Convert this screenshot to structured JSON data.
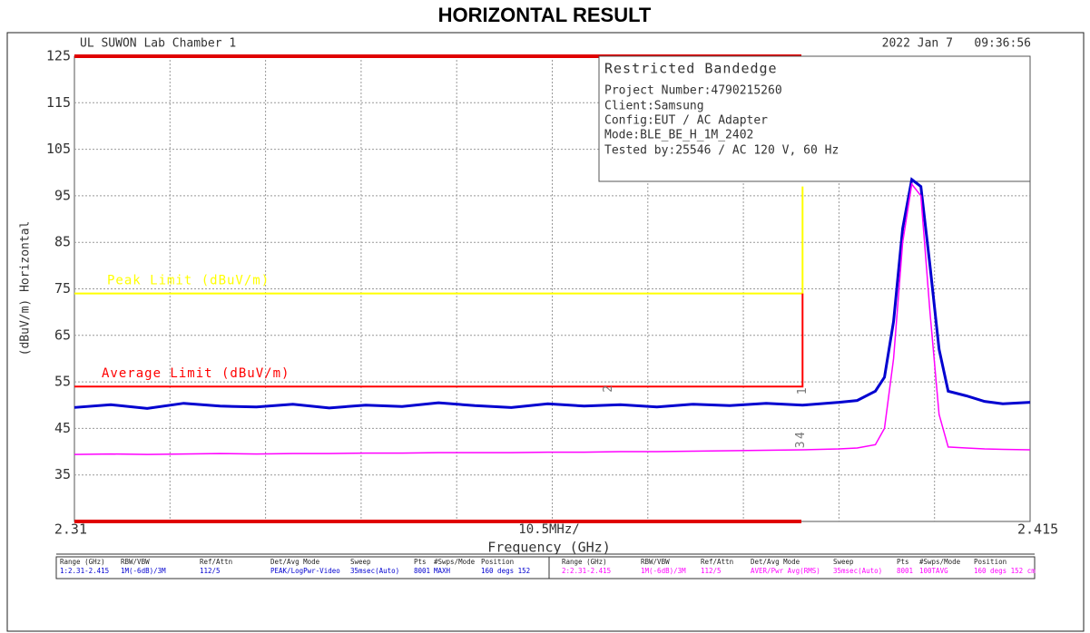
{
  "chart_data": {
    "type": "line",
    "title": "HORIZONTAL RESULT",
    "header_left": "UL SUWON Lab Chamber 1",
    "header_right": "2022 Jan 7   09:36:56",
    "ylabel": "(dBuV/m) Horizontal",
    "xlabel": "Frequency (GHz)",
    "x_scale_label": "10.5MHz/",
    "xlim": [
      2.31,
      2.415
    ],
    "xticks": [
      2.31,
      2.415
    ],
    "ylim": [
      25,
      125
    ],
    "yticks": [
      125,
      115,
      105,
      95,
      85,
      75,
      65,
      55,
      45,
      35
    ],
    "grid": true,
    "info_box": [
      "Restricted Bandedge",
      "Project Number:4790215260",
      "Client:Samsung",
      "Config:EUT / AC Adapter",
      "Mode:BLE_BE_H_1M_2402",
      "Tested by:25546 / AC 120 V, 60 Hz"
    ],
    "x": [
      2.31,
      2.314,
      2.318,
      2.322,
      2.326,
      2.33,
      2.334,
      2.338,
      2.342,
      2.346,
      2.35,
      2.354,
      2.358,
      2.362,
      2.366,
      2.37,
      2.374,
      2.378,
      2.382,
      2.386,
      2.39,
      2.394,
      2.396,
      2.398,
      2.399,
      2.4,
      2.401,
      2.402,
      2.403,
      2.404,
      2.405,
      2.406,
      2.408,
      2.41,
      2.412,
      2.415
    ],
    "series": [
      {
        "name": "Peak",
        "color": "#0000d0",
        "values": [
          49.5,
          50.1,
          49.3,
          50.4,
          49.8,
          49.6,
          50.2,
          49.4,
          50.0,
          49.7,
          50.5,
          49.9,
          49.5,
          50.3,
          49.8,
          50.1,
          49.6,
          50.2,
          49.9,
          50.4,
          50.0,
          50.6,
          51,
          53,
          56,
          68,
          88,
          98.5,
          97,
          80,
          62,
          53,
          52,
          50.8,
          50.3,
          50.6
        ]
      },
      {
        "name": "Average",
        "color": "#ff00ff",
        "values": [
          39.4,
          39.5,
          39.4,
          39.5,
          39.6,
          39.5,
          39.6,
          39.6,
          39.7,
          39.7,
          39.8,
          39.8,
          39.8,
          39.9,
          39.9,
          40.0,
          40.0,
          40.1,
          40.2,
          40.3,
          40.4,
          40.6,
          40.8,
          41.5,
          45,
          60,
          85,
          97.5,
          95,
          70,
          48,
          41,
          40.8,
          40.6,
          40.5,
          40.4
        ]
      }
    ],
    "limit_lines": [
      {
        "name": "Peak Limit (dBuV/m)",
        "color": "#ffff00",
        "x": [
          2.31,
          2.39,
          2.39
        ],
        "values": [
          74,
          74,
          97
        ]
      },
      {
        "name": "Average Limit (dBuV/m)",
        "color": "#ff0000",
        "x": [
          2.31,
          2.39,
          2.39
        ],
        "values": [
          54,
          54,
          74
        ]
      }
    ],
    "markers": [
      {
        "label": "2",
        "x": 2.3687,
        "y": 53.5
      },
      {
        "label": "1",
        "x": 2.39,
        "y": 53
      },
      {
        "label": "4",
        "x": 2.3898,
        "y": 43.5
      },
      {
        "label": "3",
        "x": 2.3898,
        "y": 41.5
      }
    ],
    "settings_header": [
      "Range (GHz)",
      "RBW/VBW",
      "Ref/Attn",
      "Det/Avg Mode",
      "Sweep",
      "Pts",
      "#Swps/Mode",
      "Position"
    ],
    "settings": [
      [
        "1:2.31-2.415",
        "1M(-6dB)/3M",
        "112/5",
        "PEAK/LogPwr-Video",
        "35msec(Auto)",
        "8001",
        "MAXH",
        "160 degs 152"
      ],
      [
        "2:2.31-2.415",
        "1M(-6dB)/3M",
        "112/5",
        "AVER/Pwr Avg(RMS)",
        "35msec(Auto)",
        "8001",
        "100TAVG",
        "160 degs 152 cm"
      ]
    ]
  }
}
